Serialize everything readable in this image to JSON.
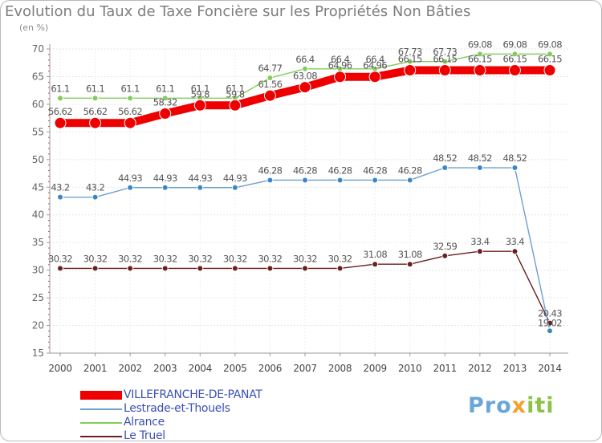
{
  "title": "Evolution du Taux de Taxe Foncière sur les Propriétés Non Bâties",
  "unit": "(en %)",
  "logo": {
    "p1": "Pro",
    "p2": "x",
    "p3": "iti"
  },
  "chart_data": {
    "type": "line",
    "title": "Evolution du Taux de Taxe Foncière sur les Propriétés Non Bâties",
    "ylabel": "(en %)",
    "ylim": [
      15,
      70
    ],
    "yticks": [
      15,
      20,
      25,
      30,
      35,
      40,
      45,
      50,
      55,
      60,
      65,
      70
    ],
    "categories": [
      "2000",
      "2001",
      "2002",
      "2003",
      "2004",
      "2005",
      "2006",
      "2007",
      "2008",
      "2009",
      "2010",
      "2011",
      "2012",
      "2013",
      "2014"
    ],
    "legend_position": "bottom-left",
    "series": [
      {
        "name": "Alrance",
        "color": "#82cd59",
        "values": [
          61.1,
          61.1,
          61.1,
          61.1,
          61.1,
          61.1,
          64.77,
          66.4,
          66.4,
          66.4,
          67.73,
          67.73,
          69.08,
          69.08,
          69.08
        ]
      },
      {
        "name": "Le Truel",
        "color": "#6a1e1e",
        "values": [
          30.32,
          30.32,
          30.32,
          30.32,
          30.32,
          30.32,
          30.32,
          30.32,
          30.32,
          31.08,
          31.08,
          32.59,
          33.4,
          33.4,
          20.43
        ]
      },
      {
        "name": "Lestrade-et-Thouels",
        "color": "#3c86c8",
        "values": [
          43.2,
          43.2,
          44.93,
          44.93,
          44.93,
          44.93,
          46.28,
          46.28,
          46.28,
          46.28,
          46.28,
          48.52,
          48.52,
          48.52,
          19.02
        ]
      },
      {
        "name": "VILLEFRANCHE-DE-PANAT",
        "color": "#ee0000",
        "values": [
          56.62,
          56.62,
          56.62,
          58.32,
          59.8,
          59.8,
          61.56,
          63.08,
          64.96,
          64.96,
          66.15,
          66.15,
          66.15,
          66.15,
          66.15
        ]
      }
    ]
  },
  "legend": [
    {
      "label": "VILLEFRANCHE-DE-PANAT",
      "color": "#ee0000",
      "text_color": "#3b50b5"
    },
    {
      "label": "Lestrade-et-Thouels",
      "color": "#6e9fcf",
      "text_color": "#3b50b5"
    },
    {
      "label": "Alrance",
      "color": "#82cd59",
      "text_color": "#3b50b5"
    },
    {
      "label": "Le Truel",
      "color": "#6a1e1e",
      "text_color": "#3b50b5"
    }
  ]
}
